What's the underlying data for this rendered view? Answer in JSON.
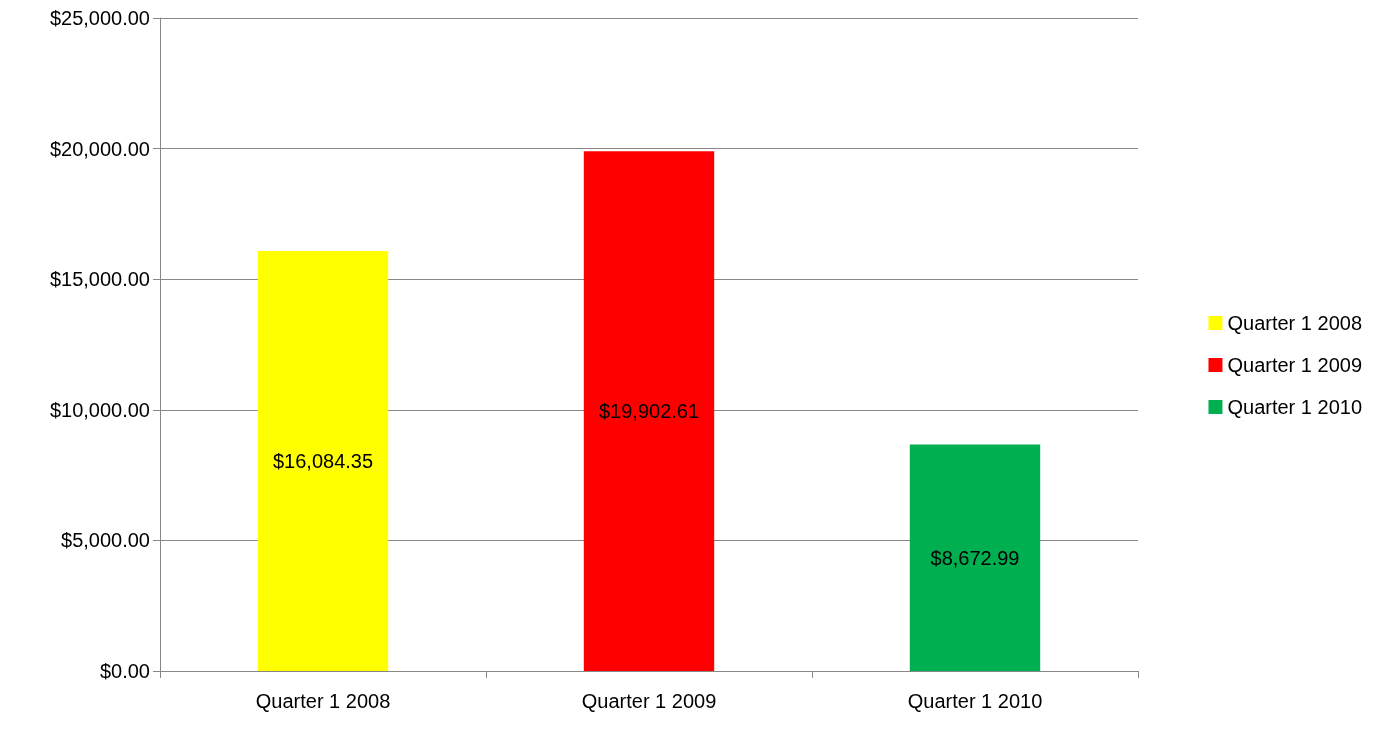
{
  "chart_data": {
    "type": "bar",
    "categories": [
      "Quarter 1 2008",
      "Quarter 1 2009",
      "Quarter 1 2010"
    ],
    "series": [
      {
        "name": "Quarter 1 2008",
        "color": "#ffff00",
        "values": [
          16084.35,
          null,
          null
        ],
        "value_labels": [
          "$16,084.35",
          null,
          null
        ]
      },
      {
        "name": "Quarter 1 2009",
        "color": "#ff0000",
        "values": [
          null,
          19902.61,
          null
        ],
        "value_labels": [
          null,
          "$19,902.61",
          null
        ]
      },
      {
        "name": "Quarter 1 2010",
        "color": "#00b050",
        "values": [
          null,
          null,
          8672.99
        ],
        "value_labels": [
          null,
          null,
          "$8,672.99"
        ]
      }
    ],
    "ylim": [
      0,
      25000
    ],
    "yticks": [
      {
        "value": 0,
        "label": "$0.00"
      },
      {
        "value": 5000,
        "label": "$5,000.00"
      },
      {
        "value": 10000,
        "label": "$10,000.00"
      },
      {
        "value": 15000,
        "label": "$15,000.00"
      },
      {
        "value": 20000,
        "label": "$20,000.00"
      },
      {
        "value": 25000,
        "label": "$25,000.00"
      }
    ],
    "grid": "y",
    "legend": "right"
  }
}
